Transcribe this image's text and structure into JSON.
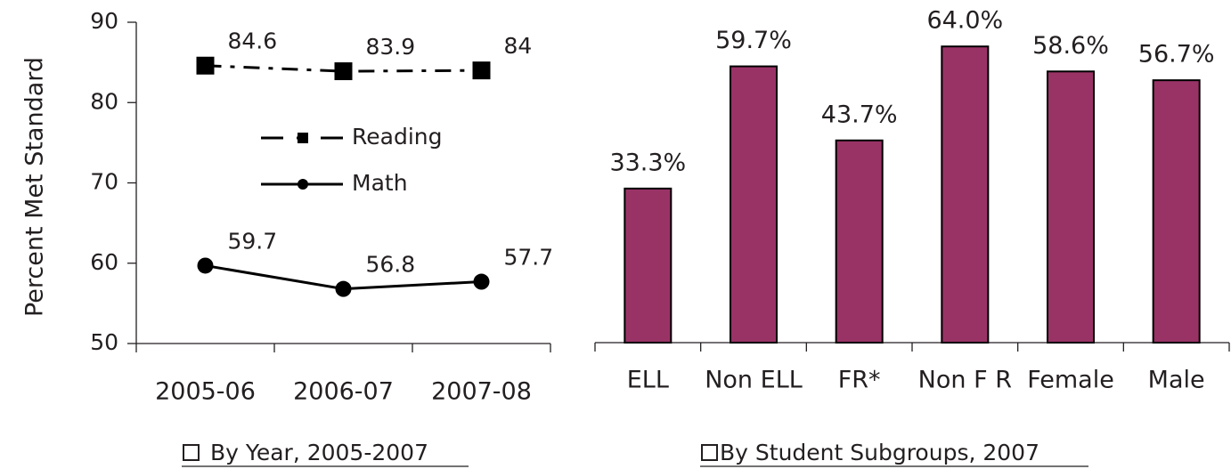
{
  "chart_data": [
    {
      "type": "line",
      "y_label": "Percent Met Standard",
      "categories": [
        "2005-06",
        "2006-07",
        "2007-08"
      ],
      "series": [
        {
          "name": "Reading",
          "color": "#000000",
          "line_style": "dashed",
          "marker": "square",
          "values": [
            84.6,
            83.9,
            84
          ]
        },
        {
          "name": "Math",
          "color": "#000000",
          "line_style": "solid",
          "marker": "circle",
          "values": [
            59.7,
            56.8,
            57.7
          ]
        }
      ],
      "ylim": [
        50,
        90
      ],
      "yticks": [
        50,
        60,
        70,
        80,
        90
      ],
      "caption": "By Year, 2005-2007"
    },
    {
      "type": "bar",
      "categories": [
        "ELL",
        "Non ELL",
        "FR*",
        "Non F R",
        "Female",
        "Male"
      ],
      "values": [
        33.3,
        59.7,
        43.7,
        64.0,
        58.6,
        56.7
      ],
      "value_labels": [
        "33.3%",
        "59.7%",
        "43.7%",
        "64.0%",
        "58.6%",
        "56.7%"
      ],
      "color": "#993366",
      "ylim": [
        0,
        70
      ],
      "caption": "By Student Subgroups, 2007"
    }
  ]
}
